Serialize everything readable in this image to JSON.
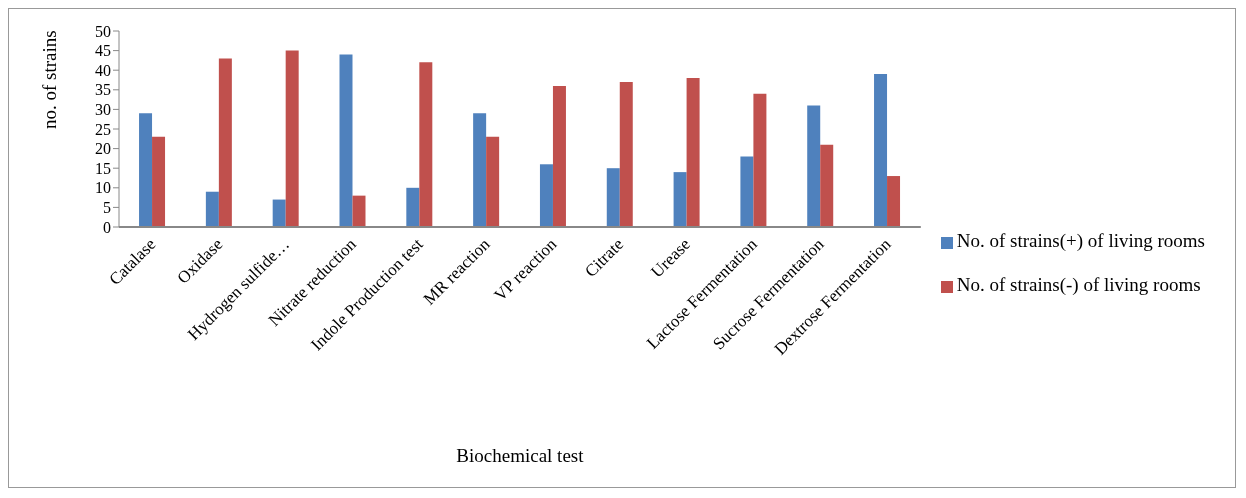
{
  "chart_data": {
    "type": "bar",
    "xlabel": "Biochemical test",
    "ylabel": "no. of strains",
    "categories": [
      "Catalase",
      "Oxidase",
      "Hydrogen sulfide…",
      "Nitrate reduction",
      "Indole Production test",
      "MR reaction",
      "VP reaction",
      "Citrate",
      "Urease",
      "Lactose Fermentation",
      "Sucrose Fermentation",
      "Dextrose Fermentation"
    ],
    "series": [
      {
        "name": "No. of strains(+) of living rooms",
        "color": "#4f81bd",
        "values": [
          29,
          9,
          7,
          44,
          10,
          29,
          16,
          15,
          14,
          18,
          31,
          39
        ]
      },
      {
        "name": "No. of strains(-) of living rooms",
        "color": "#c0504d",
        "values": [
          23,
          43,
          45,
          8,
          42,
          23,
          36,
          37,
          38,
          34,
          21,
          13
        ]
      }
    ],
    "ylim": [
      0,
      50
    ],
    "yticks": [
      0,
      5,
      10,
      15,
      20,
      25,
      30,
      35,
      40,
      45,
      50
    ],
    "grid": false,
    "legend": "right"
  }
}
